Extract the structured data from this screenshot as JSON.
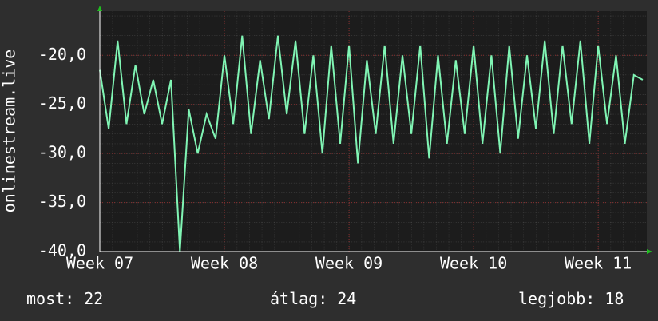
{
  "chart_data": {
    "type": "line",
    "y_label": "onlinestream.live",
    "x": [
      7.0,
      7.071,
      7.143,
      7.214,
      7.286,
      7.357,
      7.429,
      7.5,
      7.571,
      7.643,
      7.714,
      7.786,
      7.857,
      7.929,
      8.0,
      8.071,
      8.143,
      8.214,
      8.286,
      8.357,
      8.429,
      8.5,
      8.571,
      8.643,
      8.714,
      8.786,
      8.857,
      8.929,
      9.0,
      9.071,
      9.143,
      9.214,
      9.286,
      9.357,
      9.429,
      9.5,
      9.571,
      9.643,
      9.714,
      9.786,
      9.857,
      9.929,
      10.0,
      10.071,
      10.143,
      10.214,
      10.286,
      10.357,
      10.429,
      10.5,
      10.571,
      10.643,
      10.714,
      10.786,
      10.857,
      10.929,
      11.0,
      11.071,
      11.143,
      11.214,
      11.286,
      11.357
    ],
    "series": [
      {
        "color": "#80f5b4",
        "values": [
          -21.5,
          -27.5,
          -18.5,
          -27,
          -21,
          -26,
          -22.5,
          -27,
          -22.5,
          -40,
          -25.5,
          -30,
          -26,
          -28.5,
          -20,
          -27,
          -18,
          -28,
          -20.5,
          -26.5,
          -18,
          -26,
          -18.5,
          -28,
          -20,
          -30,
          -19,
          -29,
          -19,
          -31,
          -20.5,
          -28,
          -19,
          -29,
          -20,
          -28,
          -19,
          -30.5,
          -20,
          -29,
          -20.5,
          -28,
          -19,
          -29,
          -20,
          -30,
          -19,
          -28.5,
          -20,
          -27.5,
          -18.5,
          -28,
          -19,
          -27,
          -18.5,
          -29,
          -19,
          -27,
          -20,
          -29,
          -22,
          -22.5
        ]
      }
    ],
    "xlim": [
      7,
      11.39
    ],
    "xticks": [
      {
        "value": 7,
        "label": "Week 07"
      },
      {
        "value": 8,
        "label": "Week 08"
      },
      {
        "value": 9,
        "label": "Week 09"
      },
      {
        "value": 10,
        "label": "Week 10"
      },
      {
        "value": 11,
        "label": "Week 11"
      }
    ],
    "ylim": [
      -40,
      -15.5
    ],
    "yticks": [
      {
        "value": -40,
        "label": "-40,0"
      },
      {
        "value": -35,
        "label": "-35,0"
      },
      {
        "value": -30,
        "label": "-30,0"
      },
      {
        "value": -25,
        "label": "-25,0"
      },
      {
        "value": -20,
        "label": "-20,0"
      }
    ],
    "grid": true,
    "stats": [
      {
        "label": "most:",
        "value": 22
      },
      {
        "label": "átlag:",
        "value": 24
      },
      {
        "label": "legjobb:",
        "value": 18
      }
    ]
  }
}
